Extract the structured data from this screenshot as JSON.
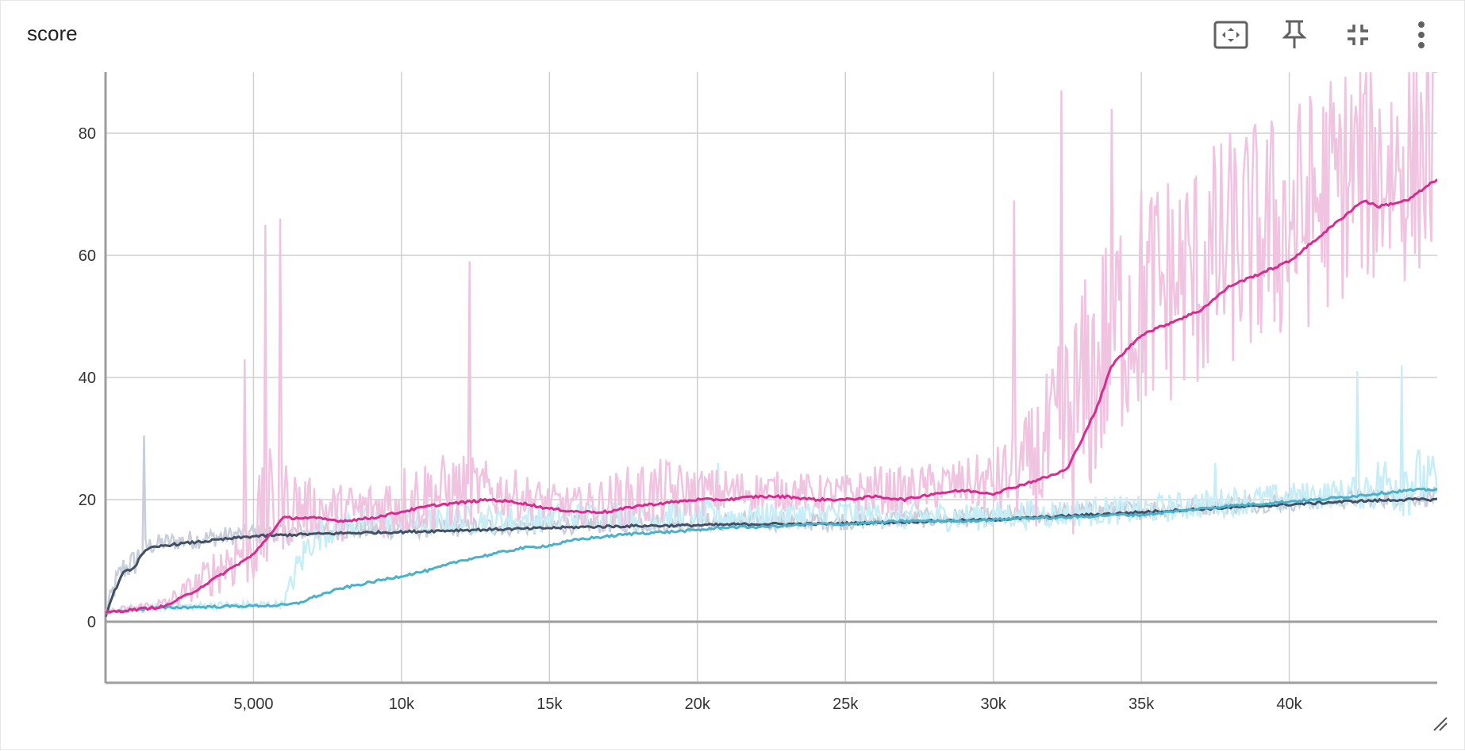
{
  "card": {
    "title": "score",
    "toolbar": [
      {
        "icon": "fit-domain-icon",
        "label": "Fit domain to data"
      },
      {
        "icon": "pin-icon",
        "label": "Pin card"
      },
      {
        "icon": "collapse-icon",
        "label": "Exit full size"
      },
      {
        "icon": "more-vert-icon",
        "label": "More"
      }
    ]
  },
  "chart_data": {
    "type": "line",
    "title": "score",
    "xlabel": "",
    "ylabel": "",
    "xlim": [
      0,
      45000
    ],
    "ylim": [
      -10,
      90
    ],
    "x_ticks": [
      {
        "value": 5000,
        "label": "5,000"
      },
      {
        "value": 10000,
        "label": "10k"
      },
      {
        "value": 15000,
        "label": "15k"
      },
      {
        "value": 20000,
        "label": "20k"
      },
      {
        "value": 25000,
        "label": "25k"
      },
      {
        "value": 30000,
        "label": "30k"
      },
      {
        "value": 35000,
        "label": "35k"
      },
      {
        "value": 40000,
        "label": "40k"
      }
    ],
    "y_ticks": [
      0,
      20,
      40,
      60,
      80
    ],
    "grid": true,
    "series": [
      {
        "color": "#d62c8f",
        "raw_color": "#f0c4e0",
        "x": [
          0,
          1000,
          2000,
          3000,
          4000,
          5000,
          5500,
          6000,
          7000,
          8000,
          9000,
          10000,
          11000,
          12000,
          13000,
          14000,
          15000,
          16000,
          17000,
          18000,
          19000,
          20000,
          21000,
          22000,
          23000,
          24000,
          25000,
          26000,
          27000,
          28000,
          29000,
          30000,
          31000,
          32000,
          32500,
          33000,
          33500,
          34000,
          35000,
          36000,
          37000,
          38000,
          39000,
          40000,
          41000,
          42000,
          42500,
          43000,
          44000,
          45000
        ],
        "y": [
          1.5,
          2,
          2.5,
          5,
          8,
          11,
          14,
          17,
          17,
          16.5,
          17,
          18,
          19,
          19.5,
          20,
          19.5,
          18.5,
          18,
          18,
          19,
          19.5,
          20,
          20,
          20.5,
          20.5,
          20,
          20,
          20.5,
          20,
          21,
          21.5,
          21,
          22.5,
          24,
          25,
          30,
          35,
          42,
          47,
          49,
          51,
          55,
          57,
          59,
          63,
          67,
          69,
          68,
          69,
          72.5
        ],
        "raw_noise": [
          0.5,
          1,
          1.5,
          3,
          6,
          10,
          14,
          10,
          6,
          6,
          6,
          8,
          8,
          8,
          6,
          5,
          4,
          4,
          6,
          7,
          7,
          5,
          5,
          4,
          4,
          4,
          4,
          5,
          5,
          5,
          5,
          7,
          10,
          18,
          24,
          25,
          25,
          25,
          25,
          25,
          25,
          25,
          25,
          25,
          25,
          25,
          25,
          25,
          25,
          25
        ],
        "spikes": [
          [
            4700,
            43
          ],
          [
            5400,
            65
          ],
          [
            5900,
            66
          ],
          [
            12300,
            59
          ],
          [
            30700,
            69
          ],
          [
            32300,
            87
          ],
          [
            34000,
            84
          ]
        ]
      },
      {
        "color": "#4bb0c8",
        "raw_color": "#c7eef6",
        "x": [
          0,
          1000,
          2000,
          4000,
          6000,
          6500,
          7000,
          8000,
          9000,
          10000,
          11000,
          12000,
          13000,
          14000,
          15000,
          16000,
          17000,
          18000,
          19000,
          20000,
          21000,
          22000,
          23000,
          24000,
          25000,
          26000,
          27000,
          28000,
          29000,
          30000,
          31000,
          32000,
          33000,
          34000,
          35000,
          36000,
          37000,
          38000,
          39000,
          40000,
          41000,
          42000,
          43000,
          44000,
          45000
        ],
        "y": [
          1.5,
          2,
          2.3,
          2.5,
          2.7,
          3,
          4,
          5.5,
          6.5,
          7.5,
          8.5,
          10,
          11,
          12,
          12.5,
          13.5,
          14,
          14.5,
          14.7,
          15,
          15.5,
          15.5,
          15.7,
          16,
          16,
          16.2,
          16.5,
          16.5,
          16.5,
          16.7,
          17,
          17,
          17.2,
          17.5,
          17.5,
          18,
          18.5,
          19,
          19.3,
          19.7,
          20,
          20.5,
          21,
          21.5,
          21.7
        ],
        "raw_noise": [
          0.5,
          0.6,
          0.7,
          0.8,
          0.8,
          4,
          4,
          3,
          3,
          3,
          3,
          3,
          3,
          3,
          3,
          3,
          3,
          3,
          3,
          3,
          3,
          3,
          3,
          3,
          3,
          3,
          3,
          3,
          3,
          3,
          3,
          3,
          3,
          3,
          3,
          3,
          3,
          3,
          3,
          3,
          3,
          3,
          6,
          8,
          5
        ],
        "raw_offset": [
          0,
          0,
          0,
          0,
          0,
          5,
          9,
          10,
          9,
          8,
          7,
          6,
          5,
          4,
          4,
          3,
          3,
          2,
          2,
          2,
          1,
          1,
          1,
          1,
          1,
          1,
          0,
          0,
          0,
          0,
          0,
          0,
          0,
          0,
          0,
          0,
          0,
          0,
          0,
          0,
          0,
          0,
          0,
          0,
          0
        ],
        "spikes": [
          [
            20700,
            26
          ],
          [
            37500,
            26
          ],
          [
            42300,
            41
          ],
          [
            43800,
            42
          ]
        ]
      },
      {
        "color": "#425066",
        "raw_color": "#c9cfda",
        "x": [
          0,
          300,
          600,
          1000,
          1200,
          1500,
          2000,
          3000,
          4000,
          5000,
          6000,
          8000,
          10000,
          12000,
          14000,
          16000,
          18000,
          20000,
          22000,
          24000,
          26000,
          28000,
          30000,
          32000,
          34000,
          36000,
          38000,
          40000,
          42000,
          44000,
          45000
        ],
        "y": [
          1,
          5,
          8,
          9,
          11,
          12,
          12.5,
          13,
          13.5,
          14,
          14.2,
          14.5,
          14.7,
          15,
          15.2,
          15.5,
          15.7,
          15.8,
          16,
          16,
          16.2,
          16.5,
          16.7,
          17.2,
          17.7,
          18.2,
          18.7,
          19.2,
          19.7,
          20,
          20
        ],
        "raw_noise": [
          1,
          3,
          3,
          3,
          3,
          2,
          2,
          2,
          2,
          2,
          2,
          2,
          2,
          2,
          2,
          2,
          2,
          2,
          2,
          2,
          2,
          2,
          2,
          2,
          2,
          2,
          2,
          2,
          2,
          2,
          2
        ],
        "spikes": [
          [
            1300,
            30.5
          ]
        ]
      }
    ]
  }
}
